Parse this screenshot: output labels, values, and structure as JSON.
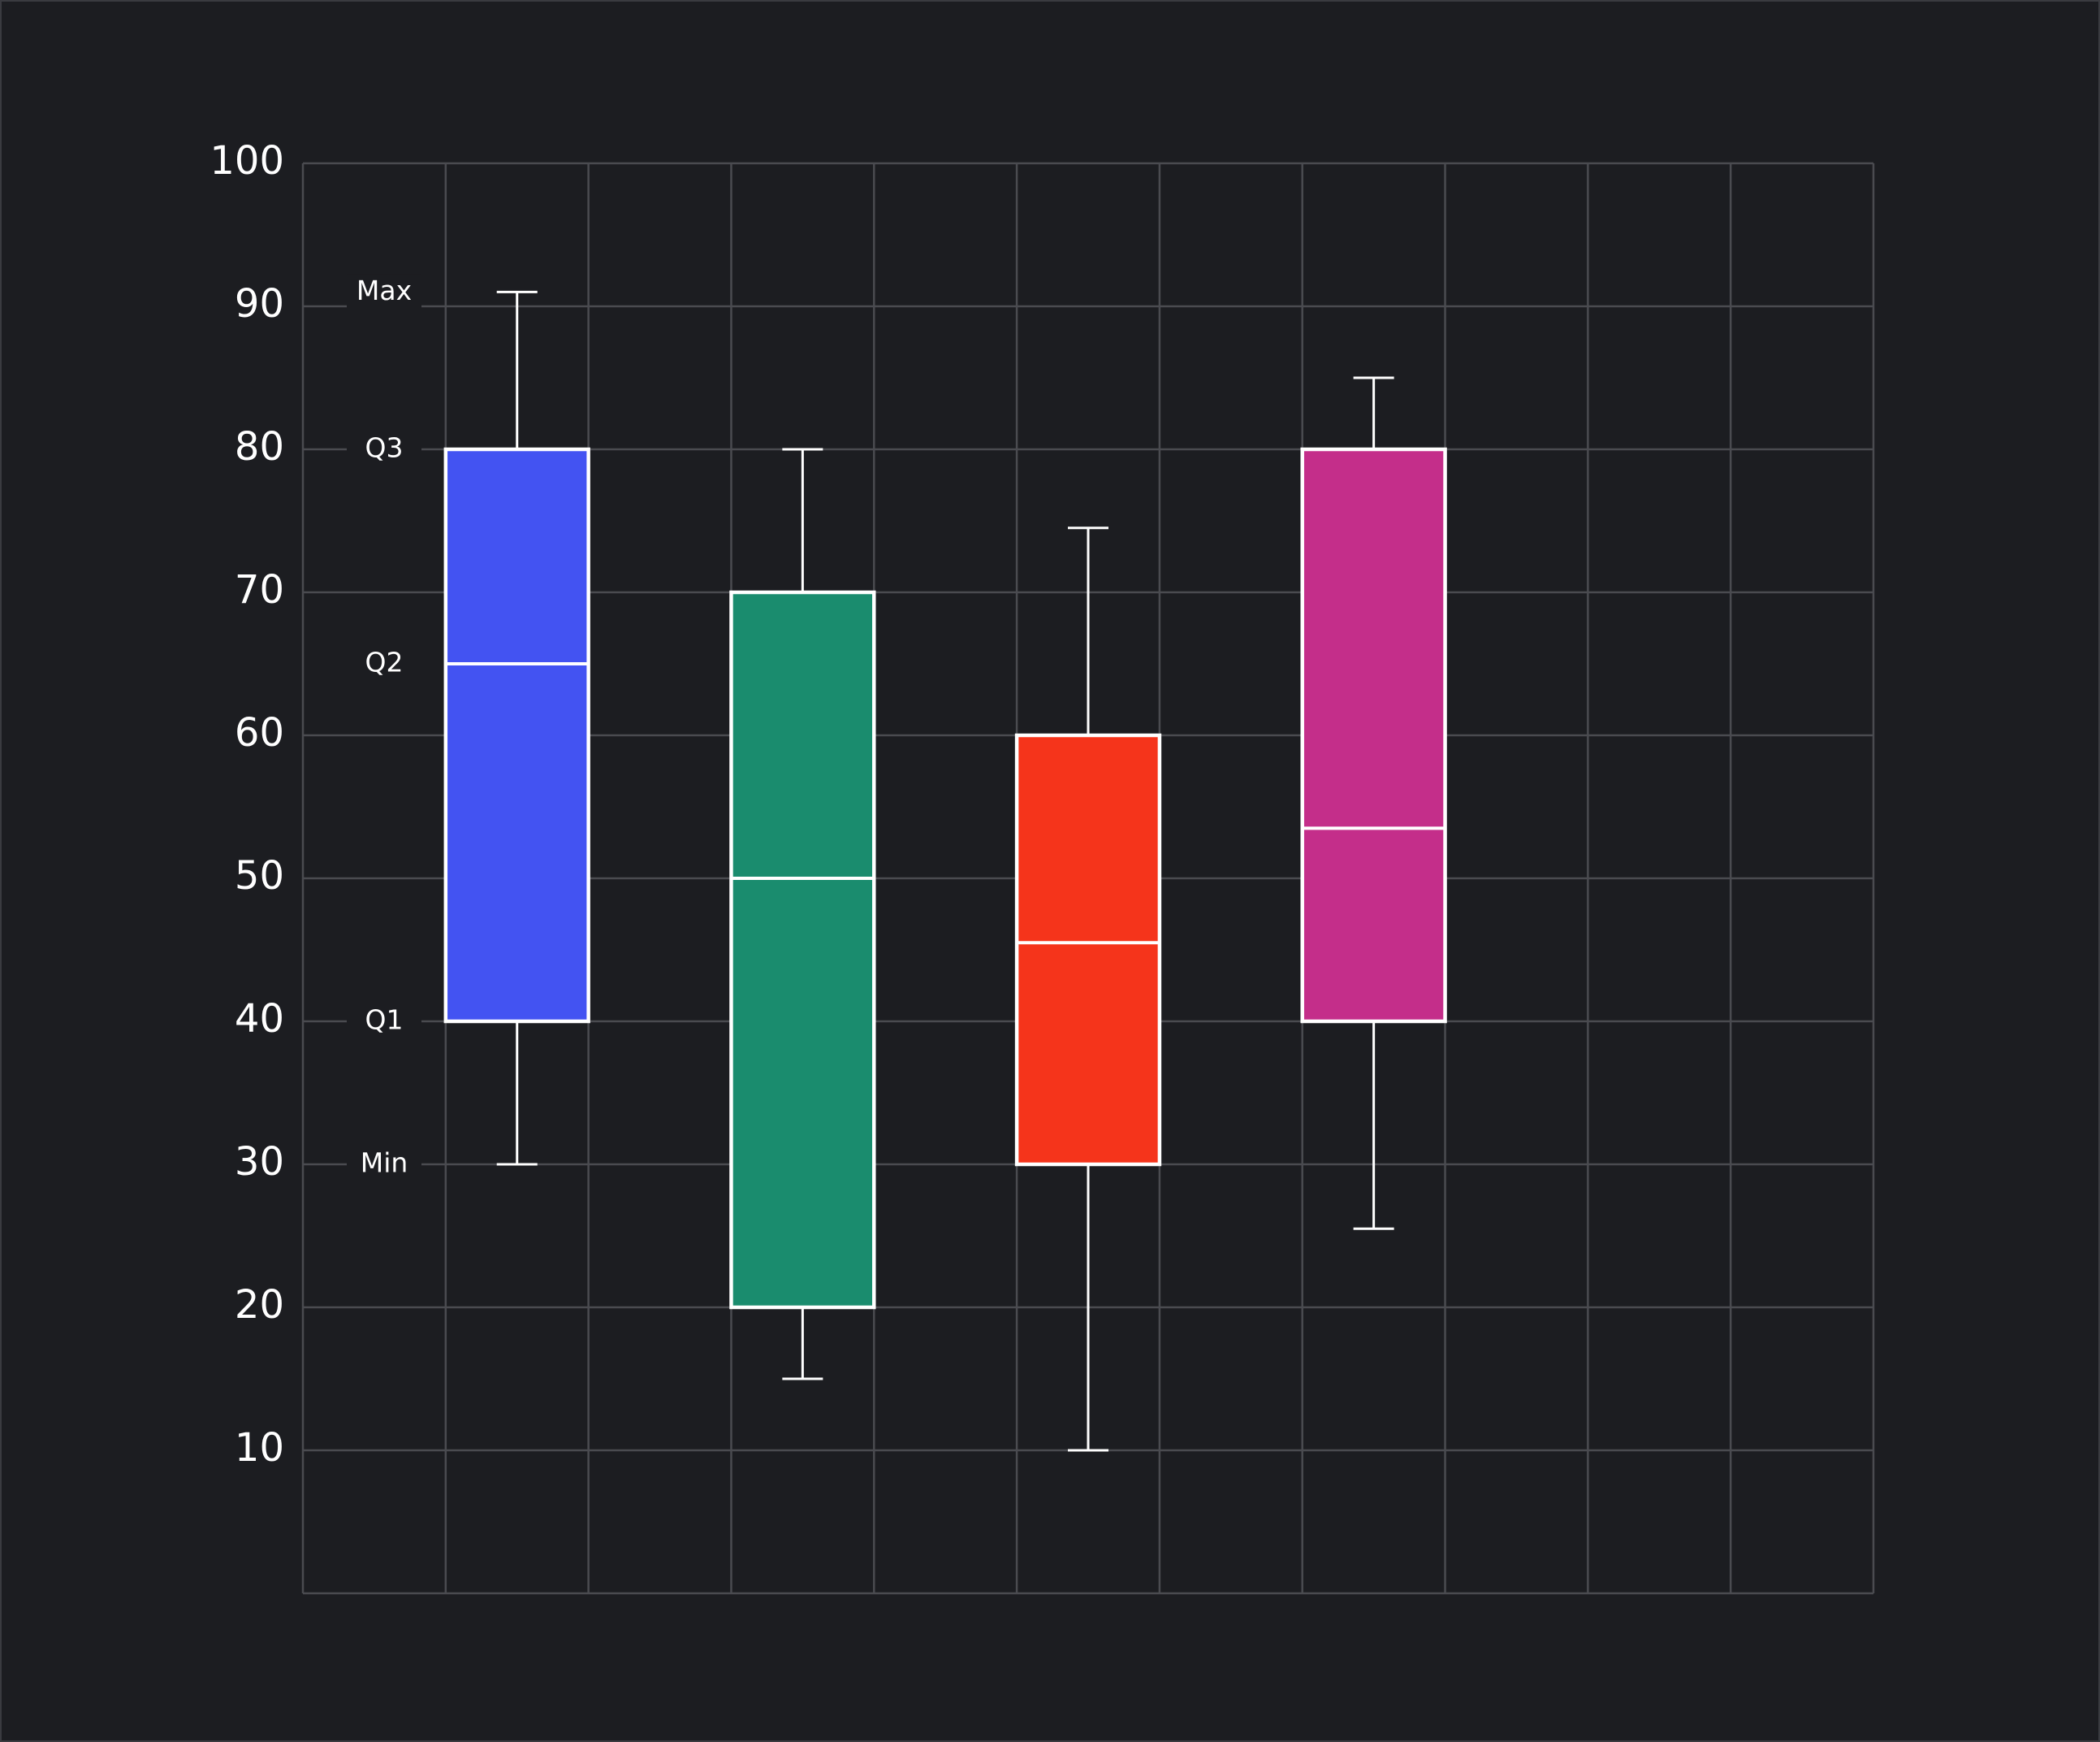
{
  "chart_data": {
    "type": "box",
    "categories": [
      null,
      null,
      null,
      null
    ],
    "boxes": [
      {
        "color": "#4353f2",
        "min": 30,
        "q1": 40,
        "median": 65,
        "q3": 80,
        "max": 91
      },
      {
        "color": "#1a8c6e",
        "min": 15,
        "q1": 20,
        "median": 50,
        "q3": 70,
        "max": 80
      },
      {
        "color": "#f5341b",
        "min": 10,
        "q1": 30,
        "median": 45.5,
        "q3": 60,
        "max": 74.5
      },
      {
        "color": "#c42e8a",
        "min": 25.5,
        "q1": 40,
        "median": 53.5,
        "q3": 80,
        "max": 85
      }
    ],
    "annotations": [
      "Max",
      "Q3",
      "Q2",
      "Q1",
      "Min"
    ],
    "ylim": [
      0,
      100
    ],
    "yticks": [
      10,
      20,
      30,
      40,
      50,
      60,
      70,
      80,
      90,
      100
    ],
    "grid": true
  }
}
